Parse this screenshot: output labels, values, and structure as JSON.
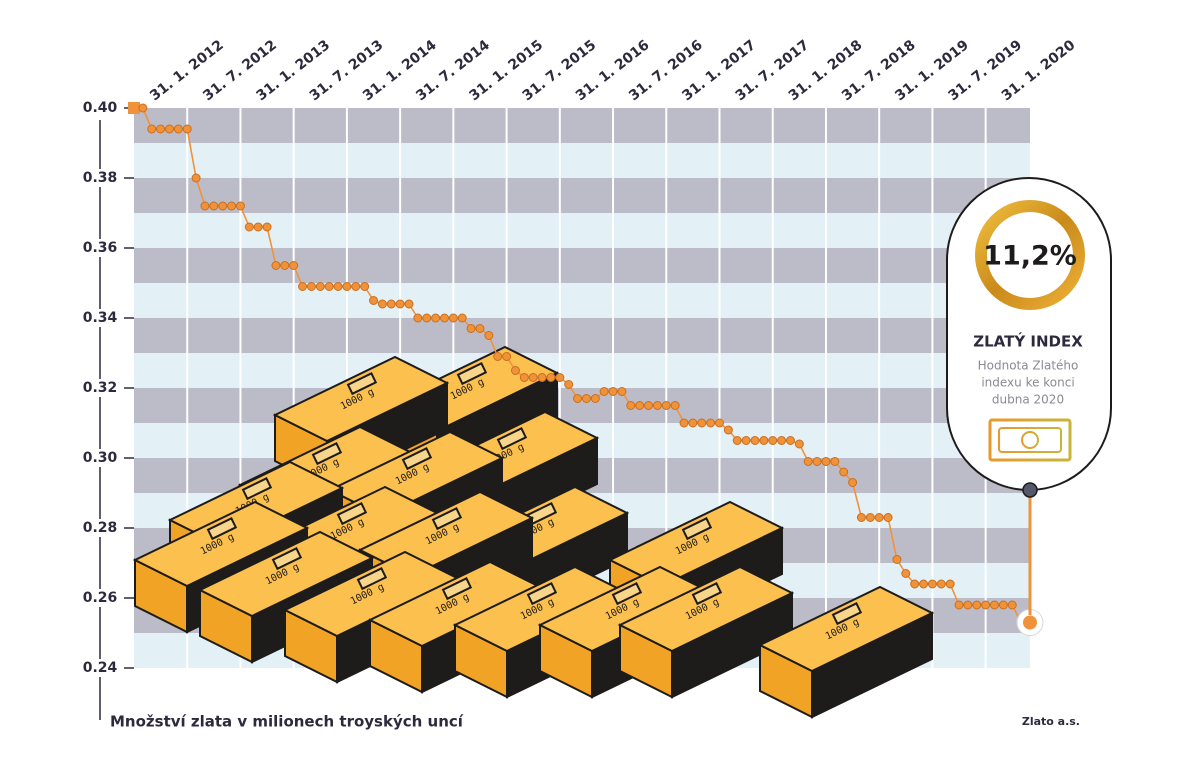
{
  "chart_data": {
    "type": "line",
    "ylabel": "Množství zlata v milionech troyských uncí",
    "source": "Zlato a.s.",
    "bar_label": "1000 g",
    "callout": {
      "value_text": "11,2%",
      "title": "ZLATÝ INDEX",
      "lines": [
        "Hodnota Zlatého",
        "indexu ke konci",
        "dubna 2020"
      ]
    },
    "color": "#f0923a",
    "categories": [
      "31. 1. 2012",
      null,
      null,
      null,
      null,
      null,
      "31. 7. 2012",
      null,
      null,
      null,
      null,
      null,
      "31. 1. 2013",
      null,
      null,
      null,
      null,
      null,
      "31. 7. 2013",
      null,
      null,
      null,
      null,
      null,
      "31. 1. 2014",
      null,
      null,
      null,
      null,
      null,
      "31. 7. 2014",
      null,
      null,
      null,
      null,
      null,
      "31. 1. 2015",
      null,
      null,
      null,
      null,
      null,
      "31. 7. 2015",
      null,
      null,
      null,
      null,
      null,
      "31. 1. 2016",
      null,
      null,
      null,
      null,
      null,
      "31. 7. 2016",
      null,
      null,
      null,
      null,
      null,
      "31. 1. 2017",
      null,
      null,
      null,
      null,
      null,
      "31. 7. 2017",
      null,
      null,
      null,
      null,
      null,
      "31. 1. 2018",
      null,
      null,
      null,
      null,
      null,
      "31. 7. 2018",
      null,
      null,
      null,
      null,
      null,
      "31. 1. 2019",
      null,
      null,
      null,
      null,
      null,
      "31. 7. 2019",
      null,
      null,
      null,
      null,
      null,
      "31. 1. 2020",
      null,
      null,
      null,
      null,
      null
    ],
    "values": [
      0.4,
      0.4,
      0.394,
      0.394,
      0.394,
      0.394,
      0.394,
      0.38,
      0.372,
      0.372,
      0.372,
      0.372,
      0.372,
      0.366,
      0.366,
      0.366,
      0.355,
      0.355,
      0.355,
      0.349,
      0.349,
      0.349,
      0.349,
      0.349,
      0.349,
      0.349,
      0.349,
      0.345,
      0.344,
      0.344,
      0.344,
      0.344,
      0.34,
      0.34,
      0.34,
      0.34,
      0.34,
      0.34,
      0.337,
      0.337,
      0.335,
      0.329,
      0.329,
      0.325,
      0.323,
      0.323,
      0.323,
      0.323,
      0.323,
      0.321,
      0.317,
      0.317,
      0.317,
      0.319,
      0.319,
      0.319,
      0.315,
      0.315,
      0.315,
      0.315,
      0.315,
      0.315,
      0.31,
      0.31,
      0.31,
      0.31,
      0.31,
      0.308,
      0.305,
      0.305,
      0.305,
      0.305,
      0.305,
      0.305,
      0.305,
      0.304,
      0.299,
      0.299,
      0.299,
      0.299,
      0.296,
      0.293,
      0.283,
      0.283,
      0.283,
      0.283,
      0.271,
      0.267,
      0.264,
      0.264,
      0.264,
      0.264,
      0.264,
      0.258,
      0.258,
      0.258,
      0.258,
      0.258,
      0.258,
      0.258,
      0.253,
      0.253
    ],
    "ylim": [
      0.24,
      0.4
    ],
    "yticks": [
      {
        "value": 0.4,
        "label": "0.40"
      },
      0.38,
      0.36,
      0.34,
      0.32,
      {
        "value": 0.3,
        "label": "0.30"
      },
      0.28,
      0.26,
      0.24
    ],
    "grid": true
  }
}
